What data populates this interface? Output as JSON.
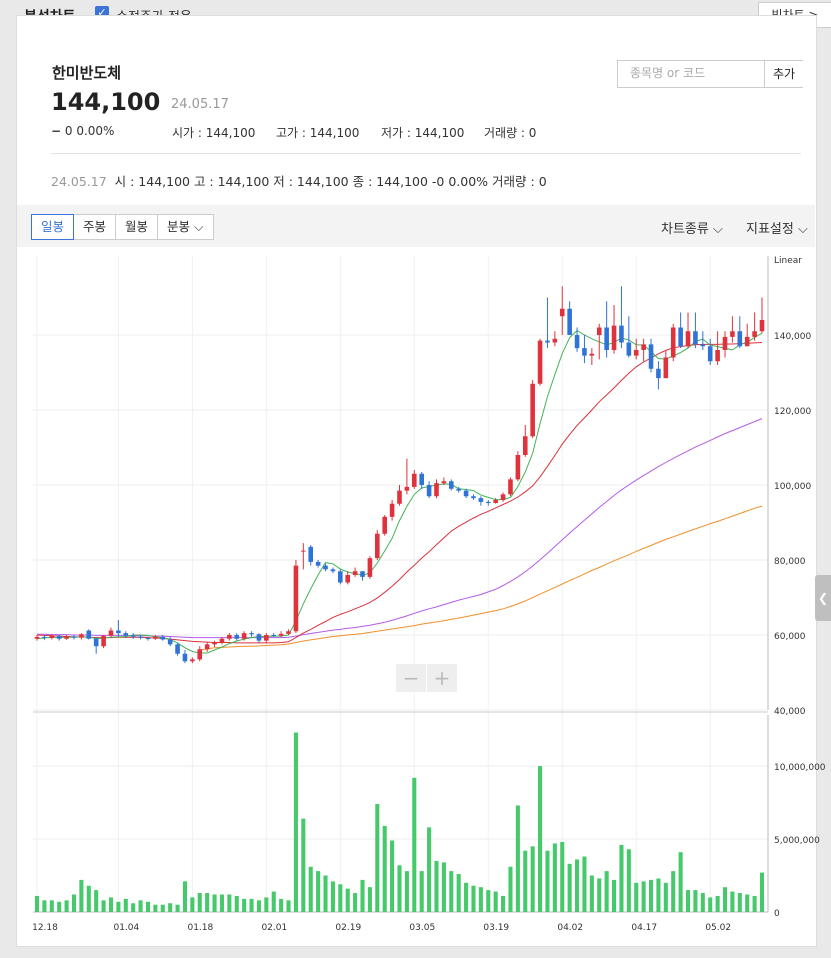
{
  "topbar": {
    "title": "분석차트",
    "adjusted_label": "수정주가 적용",
    "big_chart_label": "빅차트 >"
  },
  "stock": {
    "name": "한미반도체",
    "price": "144,100",
    "date": "24.05.17",
    "change": "0 0.00%",
    "open_label": "시가 : 144,100",
    "high_label": "고가 : 144,100",
    "low_label": "저가 : 144,100",
    "volume_label": "거래량 : 0"
  },
  "search": {
    "placeholder": "종목명 or 코드",
    "add_label": "추가"
  },
  "detail": {
    "date": "24.05.17",
    "text": "시 : 144,100  고 : 144,100  저 : 144,100  종 : 144,100 -0 0.00%  거래량 : 0"
  },
  "tabs": [
    "일봉",
    "주봉",
    "월봉",
    "분봉 ⌵"
  ],
  "selects": {
    "chart_type": "차트종류 ⌵",
    "indicator": "지표설정 ⌵"
  },
  "zoom": {
    "minus": "−",
    "plus": "+"
  },
  "colors": {
    "up": "#e0323c",
    "down": "#2f73d6",
    "ma5": "#40b557",
    "ma20": "#d9323a",
    "ma60": "#b45be8",
    "ma120": "#f0902b",
    "volume": "#45c96a"
  },
  "chart_data": {
    "type": "candlestick",
    "scale": "Linear",
    "price_ylim": [
      40000,
      160000
    ],
    "price_ticks": [
      "140,000",
      "120,000",
      "100,000",
      "80,000",
      "60,000",
      "40,000"
    ],
    "price_tick_values": [
      140000,
      120000,
      100000,
      80000,
      60000,
      40000
    ],
    "volume_ylim": [
      0,
      13500000
    ],
    "volume_ticks": [
      "10,000,000",
      "5,000,000",
      "0"
    ],
    "volume_tick_values": [
      10000000,
      5000000,
      0
    ],
    "x_ticks": [
      {
        "label": "12.18",
        "index": 0
      },
      {
        "label": "01.04",
        "index": 11
      },
      {
        "label": "01.18",
        "index": 21
      },
      {
        "label": "02.01",
        "index": 31
      },
      {
        "label": "02.19",
        "index": 41
      },
      {
        "label": "03.05",
        "index": 51
      },
      {
        "label": "03.19",
        "index": 61
      },
      {
        "label": "04.02",
        "index": 71
      },
      {
        "label": "04.17",
        "index": 81
      },
      {
        "label": "05.02",
        "index": 91
      }
    ],
    "close": [
      59500,
      59200,
      59800,
      59000,
      59600,
      59300,
      60200,
      59000,
      57000,
      59800,
      61200,
      60500,
      59800,
      59500,
      59200,
      59000,
      59500,
      58800,
      57500,
      55000,
      53000,
      53500,
      56200,
      57500,
      58000,
      59000,
      60000,
      59000,
      60500,
      60200,
      58500,
      60000,
      59800,
      60300,
      61000,
      78500,
      82500,
      79500,
      78500,
      77500,
      77000,
      74000,
      76000,
      77000,
      75500,
      80500,
      87000,
      91500,
      95000,
      98500,
      99500,
      103000,
      100000,
      97000,
      100500,
      101000,
      99000,
      98500,
      97000,
      96500,
      95500,
      95200,
      96000,
      97500,
      101500,
      108000,
      113000,
      127000,
      138500,
      138000,
      139000,
      147000,
      140000,
      136500,
      134500,
      135000,
      142000,
      136000,
      142500,
      138000,
      134500,
      136000,
      137500,
      131000,
      128500,
      134000,
      142000,
      137000,
      141000,
      137500,
      137000,
      133000,
      136000,
      139500,
      141000,
      137000,
      139500,
      141000,
      144000
    ],
    "open": [
      59000,
      59500,
      59200,
      59800,
      59000,
      59600,
      59300,
      61200,
      59000,
      57000,
      59800,
      61200,
      60500,
      59800,
      59500,
      59200,
      59000,
      59500,
      58800,
      57500,
      55000,
      53000,
      53500,
      56200,
      57500,
      58000,
      59000,
      60000,
      59000,
      60500,
      60200,
      58500,
      60000,
      59800,
      60300,
      61000,
      82500,
      83500,
      79500,
      78500,
      77500,
      77000,
      74000,
      76000,
      77000,
      75500,
      80500,
      87000,
      91500,
      95000,
      98500,
      99500,
      103000,
      100000,
      97000,
      100500,
      101000,
      99000,
      98500,
      97000,
      96500,
      95500,
      95200,
      96000,
      97500,
      101500,
      108000,
      113000,
      127000,
      138500,
      138000,
      145000,
      147000,
      140000,
      136500,
      134500,
      140000,
      142000,
      136000,
      142500,
      138000,
      134500,
      136000,
      137500,
      131000,
      128500,
      134000,
      142000,
      137000,
      141000,
      137500,
      137000,
      133000,
      136000,
      139500,
      141000,
      137000,
      139500,
      141000
    ],
    "high": [
      60000,
      60000,
      60200,
      60000,
      60000,
      60000,
      60500,
      61500,
      59500,
      60000,
      62000,
      64000,
      61000,
      60500,
      60000,
      59500,
      60000,
      60000,
      59500,
      58000,
      56000,
      54000,
      57000,
      58000,
      58500,
      59500,
      60500,
      60500,
      61000,
      61000,
      60500,
      60500,
      60500,
      61000,
      61500,
      80000,
      84500,
      84000,
      80000,
      79000,
      78000,
      77500,
      77000,
      78000,
      77000,
      81000,
      88000,
      92000,
      96000,
      100000,
      107000,
      104000,
      103500,
      101000,
      101500,
      102000,
      101500,
      99500,
      99000,
      97500,
      97000,
      96000,
      96500,
      98000,
      102000,
      109000,
      116000,
      128000,
      139000,
      150000,
      141000,
      153000,
      149000,
      142000,
      140000,
      136500,
      143000,
      149000,
      148000,
      153000,
      145000,
      139000,
      139000,
      139000,
      133000,
      136000,
      143000,
      146000,
      146000,
      146000,
      141000,
      139000,
      141000,
      141000,
      145000,
      145000,
      143000,
      146000,
      150000
    ],
    "low": [
      58500,
      58700,
      58800,
      58500,
      58700,
      58800,
      58800,
      58800,
      55000,
      56500,
      59300,
      59500,
      59200,
      59000,
      58800,
      58500,
      58700,
      58500,
      57000,
      54500,
      52500,
      52500,
      53000,
      55500,
      56800,
      57500,
      58500,
      58500,
      58500,
      59500,
      58000,
      57800,
      59500,
      59500,
      60000,
      60500,
      77500,
      78500,
      78000,
      77000,
      76500,
      73500,
      73500,
      75500,
      74500,
      75000,
      80000,
      86500,
      90500,
      94500,
      97500,
      99000,
      99000,
      96500,
      96500,
      100000,
      98500,
      98000,
      96500,
      96000,
      94500,
      94500,
      95000,
      95500,
      97000,
      101000,
      107500,
      112500,
      126500,
      136500,
      137000,
      140000,
      140500,
      135500,
      132500,
      132000,
      133500,
      134000,
      135000,
      136500,
      134000,
      133500,
      133000,
      130000,
      125500,
      128500,
      133000,
      136500,
      136500,
      136500,
      136000,
      132000,
      132000,
      134000,
      138000,
      136500,
      137000,
      138500,
      140500
    ],
    "ma5": [
      59050,
      59200,
      59400,
      59300,
      59400,
      59400,
      59500,
      59500,
      59000,
      59200,
      59400,
      59500,
      59600,
      60000,
      60000,
      59900,
      59500,
      59300,
      58800,
      57900,
      56600,
      55600,
      55200,
      55200,
      56000,
      56800,
      57700,
      58400,
      58900,
      59300,
      59600,
      59600,
      59700,
      59700,
      60000,
      63700,
      68300,
      72300,
      76000,
      79300,
      79000,
      77600,
      76800,
      76400,
      75900,
      76600,
      79200,
      82400,
      85800,
      90500,
      94300,
      97500,
      99200,
      99600,
      100000,
      100300,
      100200,
      99000,
      98800,
      98500,
      97300,
      96700,
      96100,
      96100,
      96700,
      99600,
      103500,
      108500,
      116400,
      123600,
      129500,
      135100,
      139300,
      141200,
      140000,
      139000,
      138200,
      137400,
      138000,
      139200,
      138700,
      137400,
      137300,
      135600,
      133700,
      133600,
      134400,
      135300,
      136500,
      138300,
      138900,
      137300,
      136900,
      136500,
      136000,
      137400,
      138100,
      139300,
      140500
    ],
    "ma20": [
      60000,
      59900,
      59800,
      59700,
      59600,
      59500,
      59500,
      59400,
      59300,
      59300,
      59300,
      59400,
      59400,
      59400,
      59400,
      59300,
      59200,
      59100,
      58900,
      58700,
      58500,
      58300,
      58200,
      58100,
      58000,
      58000,
      58000,
      57900,
      57900,
      57900,
      57900,
      57900,
      57900,
      58000,
      58200,
      59300,
      60500,
      61500,
      62600,
      63600,
      64700,
      65500,
      66200,
      67000,
      67800,
      68700,
      69900,
      71400,
      73000,
      74800,
      76800,
      78600,
      80500,
      82200,
      84100,
      85900,
      87700,
      89000,
      90100,
      91200,
      92200,
      93000,
      93900,
      94800,
      95700,
      96800,
      98200,
      99800,
      102200,
      105000,
      107900,
      110900,
      113500,
      115900,
      117900,
      120000,
      122200,
      124000,
      125900,
      127900,
      129800,
      131500,
      132800,
      133900,
      135000,
      135900,
      136600,
      136900,
      137200,
      137400,
      137500,
      137500,
      137500,
      137600,
      137600,
      137700,
      137800,
      137900,
      138000
    ],
    "ma60": [
      60200,
      60200,
      60100,
      60100,
      60100,
      60000,
      60000,
      60000,
      59900,
      59900,
      59900,
      59900,
      59900,
      59800,
      59800,
      59800,
      59700,
      59700,
      59600,
      59500,
      59400,
      59300,
      59300,
      59300,
      59300,
      59300,
      59300,
      59300,
      59300,
      59300,
      59300,
      59300,
      59300,
      59300,
      59400,
      59700,
      60100,
      60400,
      60700,
      61000,
      61300,
      61500,
      61800,
      62000,
      62300,
      62600,
      63000,
      63400,
      63900,
      64500,
      65100,
      65800,
      66400,
      67000,
      67500,
      68100,
      68700,
      69300,
      69800,
      70300,
      70800,
      71500,
      72200,
      73200,
      74300,
      75500,
      76900,
      78400,
      80100,
      81800,
      83600,
      85400,
      87200,
      88900,
      90600,
      92300,
      94000,
      95600,
      97200,
      98700,
      100000,
      101300,
      102500,
      103700,
      104900,
      106000,
      107100,
      108100,
      109100,
      110100,
      111000,
      111900,
      112800,
      113700,
      114500,
      115300,
      116100,
      116900,
      117700
    ],
    "ma120": [
      null,
      null,
      null,
      null,
      null,
      null,
      null,
      null,
      null,
      null,
      null,
      null,
      null,
      null,
      null,
      null,
      null,
      null,
      null,
      null,
      null,
      null,
      56000,
      56300,
      56600,
      56700,
      56800,
      56900,
      57000,
      57000,
      57100,
      57200,
      57300,
      57400,
      57600,
      58000,
      58400,
      58700,
      59000,
      59300,
      59600,
      59800,
      60000,
      60200,
      60400,
      60700,
      61000,
      61300,
      61600,
      61900,
      62200,
      62500,
      62900,
      63200,
      63500,
      63800,
      64200,
      64500,
      64900,
      65300,
      65700,
      66100,
      66500,
      67000,
      67600,
      68300,
      69100,
      70000,
      70900,
      71800,
      72700,
      73600,
      74500,
      75400,
      76300,
      77200,
      78000,
      78900,
      79800,
      80600,
      81400,
      82300,
      83100,
      83900,
      84700,
      85500,
      86200,
      86900,
      87600,
      88300,
      89000,
      89700,
      90300,
      91000,
      91700,
      92400,
      93100,
      93800,
      94400
    ],
    "volume": [
      1100000,
      800000,
      800000,
      700000,
      800000,
      1200000,
      2200000,
      1800000,
      1500000,
      800000,
      1000000,
      700000,
      900000,
      600000,
      800000,
      700000,
      500000,
      500000,
      600000,
      500000,
      2100000,
      1000000,
      1300000,
      1300000,
      1200000,
      1200000,
      1200000,
      1100000,
      900000,
      900000,
      800000,
      1000000,
      1400000,
      900000,
      800000,
      12300000,
      6400000,
      3100000,
      2800000,
      2500000,
      2100000,
      1900000,
      1600000,
      1300000,
      2200000,
      1700000,
      7400000,
      5900000,
      4900000,
      3200000,
      2800000,
      9200000,
      2800000,
      5800000,
      3500000,
      3400000,
      2800000,
      2600000,
      2000000,
      1800000,
      1700000,
      1500000,
      1400000,
      1100000,
      3100000,
      7300000,
      4200000,
      4500000,
      10000000,
      4200000,
      4700000,
      4800000,
      3300000,
      3600000,
      3800000,
      2500000,
      2300000,
      2800000,
      2200000,
      4600000,
      4300000,
      2000000,
      2100000,
      2200000,
      2300000,
      2000000,
      2800000,
      4100000,
      1500000,
      1500000,
      1300000,
      1000000,
      1100000,
      1700000,
      1400000,
      1300000,
      1200000,
      1100000,
      2700000
    ]
  }
}
